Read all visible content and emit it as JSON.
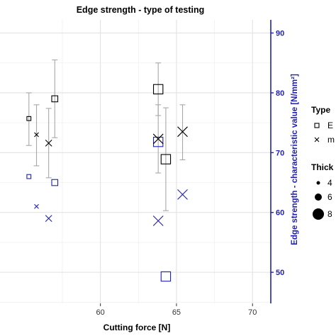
{
  "chart_data": {
    "type": "scatter",
    "title": "Edge strength - type of testing",
    "xlabel": "Cutting force [N]",
    "ylabel": "Edge strength - characteristic value [N/mm²]",
    "xlim": [
      53.4,
      71.2
    ],
    "ylim": [
      44.8,
      92.2
    ],
    "x_ticks": [
      60,
      65,
      70
    ],
    "y_ticks": [
      50,
      60,
      70,
      80,
      90
    ],
    "grid": true,
    "legend": {
      "placement": "right",
      "type_title": "Type",
      "type_items": [
        {
          "shape": "square",
          "label": "E"
        },
        {
          "shape": "cross",
          "label": "m"
        }
      ],
      "thickness_title": "Thick",
      "thickness_items": [
        {
          "size": "small",
          "label": "4"
        },
        {
          "size": "medium",
          "label": "6"
        },
        {
          "size": "large",
          "label": "8"
        }
      ]
    },
    "colors": {
      "blue": "#1f1fb4",
      "black": "#000000",
      "errorbar": "#a8a8a8"
    },
    "points": [
      {
        "x": 55.3,
        "y": 75.7,
        "shape": "square",
        "color": "black",
        "size": 6,
        "err": [
          71.2,
          80.0
        ]
      },
      {
        "x": 55.3,
        "y": 66.0,
        "shape": "square",
        "color": "blue",
        "size": 6
      },
      {
        "x": 55.8,
        "y": 73.0,
        "shape": "cross",
        "color": "black",
        "size": 6,
        "err": [
          67.8,
          78.0
        ]
      },
      {
        "x": 55.8,
        "y": 61.0,
        "shape": "cross",
        "color": "blue",
        "size": 6
      },
      {
        "x": 56.6,
        "y": 71.6,
        "shape": "cross",
        "color": "black",
        "size": 9,
        "err": [
          65.8,
          77.4
        ]
      },
      {
        "x": 56.6,
        "y": 59.0,
        "shape": "cross",
        "color": "blue",
        "size": 9
      },
      {
        "x": 57.0,
        "y": 79.0,
        "shape": "square",
        "color": "black",
        "size": 9,
        "err": [
          72.5,
          85.5
        ]
      },
      {
        "x": 57.0,
        "y": 65.0,
        "shape": "square",
        "color": "blue",
        "size": 9
      },
      {
        "x": 63.8,
        "y": 80.6,
        "shape": "square",
        "color": "black",
        "size": 14,
        "err": [
          76.2,
          85.0
        ]
      },
      {
        "x": 63.8,
        "y": 71.8,
        "shape": "square",
        "color": "blue",
        "size": 14
      },
      {
        "x": 63.8,
        "y": 72.3,
        "shape": "cross",
        "color": "black",
        "size": 14,
        "err": [
          66.6,
          78.0
        ]
      },
      {
        "x": 63.8,
        "y": 58.6,
        "shape": "cross",
        "color": "blue",
        "size": 14
      },
      {
        "x": 64.3,
        "y": 68.9,
        "shape": "square",
        "color": "black",
        "size": 14,
        "err": [
          60.3,
          77.5
        ]
      },
      {
        "x": 64.3,
        "y": 49.3,
        "shape": "square",
        "color": "blue",
        "size": 14
      },
      {
        "x": 65.4,
        "y": 73.5,
        "shape": "cross",
        "color": "black",
        "size": 14,
        "err": [
          68.8,
          78.0
        ]
      },
      {
        "x": 65.4,
        "y": 63.0,
        "shape": "cross",
        "color": "blue",
        "size": 14
      }
    ]
  }
}
